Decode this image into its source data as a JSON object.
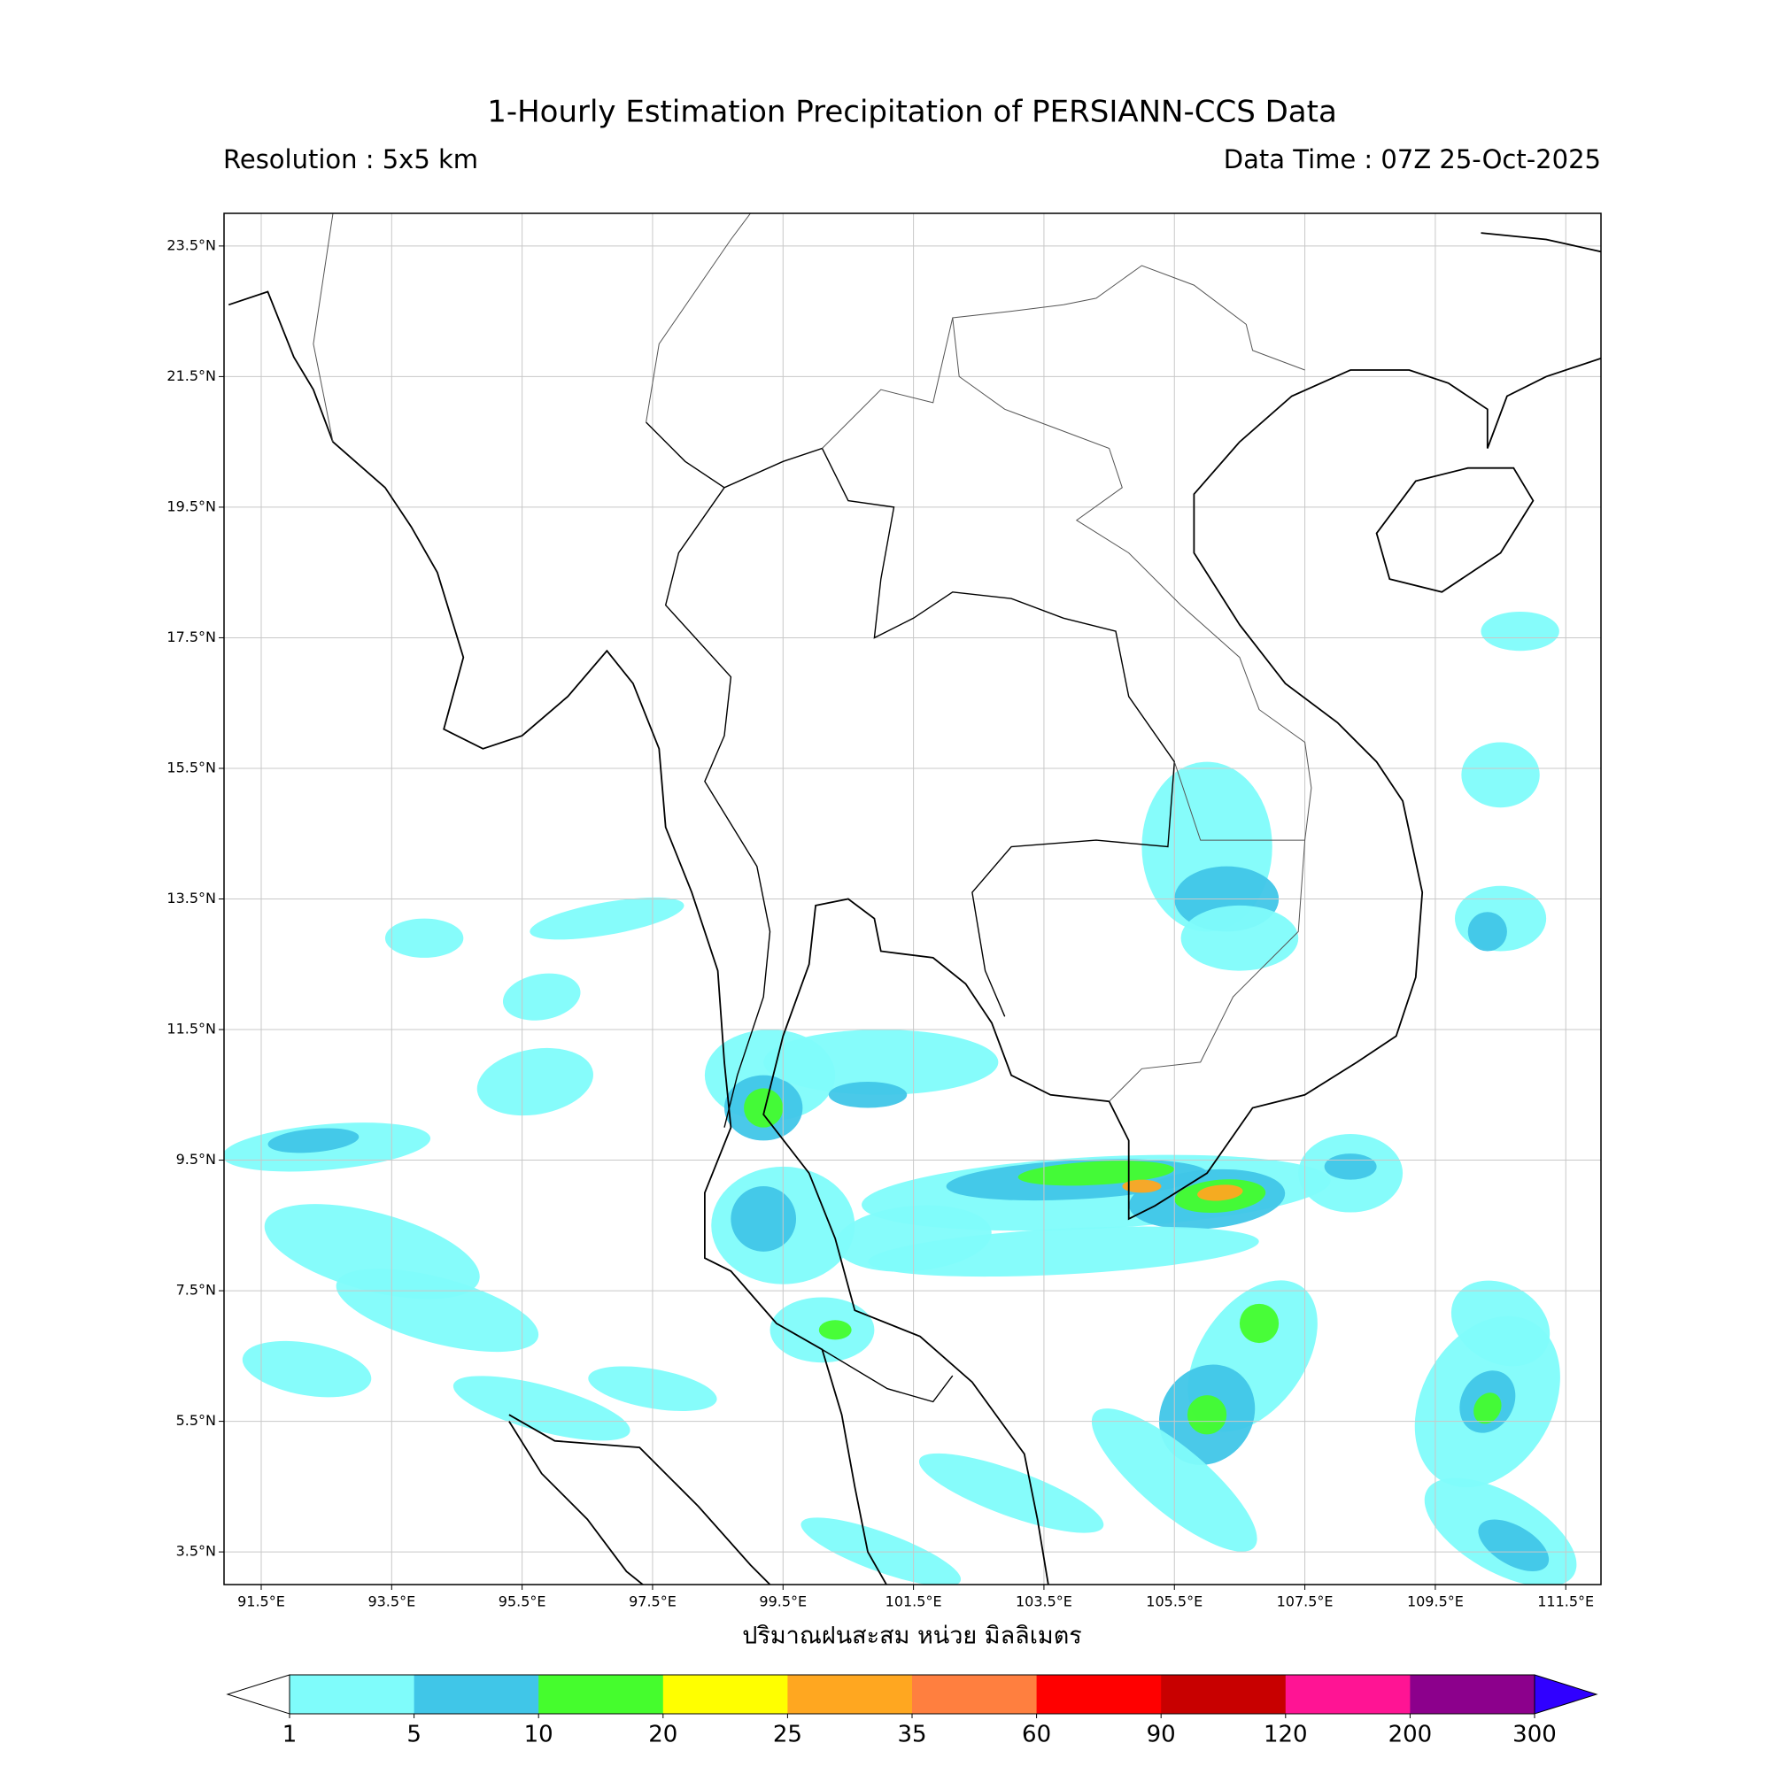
{
  "chart_data": {
    "type": "map",
    "title": "1-Hourly Estimation Precipitation of PERSIANN-CCS Data",
    "subtitle_left": "Resolution : 5x5 km",
    "subtitle_right": "Data Time : 07Z 25-Oct-2025",
    "x_label": "ปริมาณฝนสะสม หน่วย มิลลิเมตร",
    "xlim": [
      90.93,
      112.04
    ],
    "ylim": [
      3.0,
      24.0
    ],
    "xticks": [
      {
        "value": 91.5,
        "label": "91.5°E"
      },
      {
        "value": 93.5,
        "label": "93.5°E"
      },
      {
        "value": 95.5,
        "label": "95.5°E"
      },
      {
        "value": 97.5,
        "label": "97.5°E"
      },
      {
        "value": 99.5,
        "label": "99.5°E"
      },
      {
        "value": 101.5,
        "label": "101.5°E"
      },
      {
        "value": 103.5,
        "label": "103.5°E"
      },
      {
        "value": 105.5,
        "label": "105.5°E"
      },
      {
        "value": 107.5,
        "label": "107.5°E"
      },
      {
        "value": 109.5,
        "label": "109.5°E"
      },
      {
        "value": 111.5,
        "label": "111.5°E"
      }
    ],
    "yticks": [
      {
        "value": 3.5,
        "label": "3.5°N"
      },
      {
        "value": 5.5,
        "label": "5.5°N"
      },
      {
        "value": 7.5,
        "label": "7.5°N"
      },
      {
        "value": 9.5,
        "label": "9.5°N"
      },
      {
        "value": 11.5,
        "label": "11.5°N"
      },
      {
        "value": 13.5,
        "label": "13.5°N"
      },
      {
        "value": 15.5,
        "label": "15.5°N"
      },
      {
        "value": 17.5,
        "label": "17.5°N"
      },
      {
        "value": 19.5,
        "label": "19.5°N"
      },
      {
        "value": 21.5,
        "label": "21.5°N"
      },
      {
        "value": 23.5,
        "label": "23.5°N"
      }
    ],
    "grid": true,
    "colorbar": {
      "levels": [
        1,
        5,
        10,
        20,
        25,
        35,
        60,
        90,
        120,
        200,
        300
      ],
      "colors": [
        "#7ffcfb",
        "#40c6e8",
        "#45fd2d",
        "#ffff00",
        "#ffa720",
        "#ff7f3f",
        "#ff0000",
        "#c80000",
        "#ff1494",
        "#8c008c"
      ],
      "under_color": "#ffffff",
      "over_color": "#3000ff"
    }
  }
}
